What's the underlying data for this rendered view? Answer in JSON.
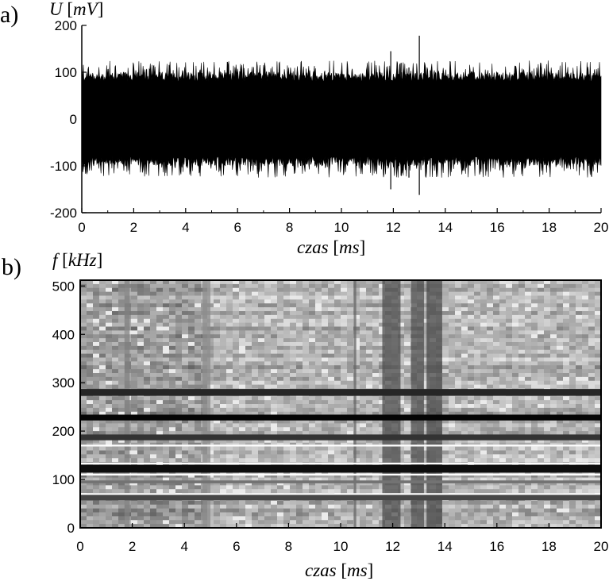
{
  "panel_a": {
    "letter": "a)"
  },
  "panel_b": {
    "letter": "b)"
  },
  "chart_data": [
    {
      "type": "line",
      "panel": "a)",
      "ylabel": {
        "var": "U",
        "unit": "mV"
      },
      "xlabel": {
        "var": "czas",
        "unit": "ms"
      },
      "xlim": [
        0,
        20
      ],
      "ylim": [
        -200,
        200
      ],
      "x_ticks": [
        0,
        2,
        4,
        6,
        8,
        10,
        12,
        14,
        16,
        18,
        20
      ],
      "y_ticks": [
        -200,
        -100,
        0,
        100,
        200
      ],
      "y_tick_labels": [
        "-200",
        "-100",
        "0",
        "100",
        "200"
      ],
      "series": [
        {
          "description_free": true,
          "fill_color": "#000000",
          "envelope": {
            "x_step": 0.02,
            "typical_peak": 80,
            "max_peak": 125
          },
          "spikes": [
            {
              "x": 11.9,
              "y_max": 145,
              "y_min": -150
            },
            {
              "x": 12.3,
              "y_max": 120,
              "y_min": -120
            },
            {
              "x": 13.0,
              "y_max": 178,
              "y_min": -162
            },
            {
              "x": 12.6,
              "y_max": 110,
              "y_min": -125
            }
          ]
        }
      ]
    },
    {
      "type": "heatmap",
      "panel": "b)",
      "ylabel": {
        "var": "f",
        "unit": "kHz"
      },
      "xlabel": {
        "var": "czas",
        "unit": "ms"
      },
      "xlim": [
        0,
        20
      ],
      "ylim": [
        0,
        512
      ],
      "x_ticks": [
        0,
        2,
        4,
        6,
        8,
        10,
        12,
        14,
        16,
        18,
        20
      ],
      "y_ticks": [
        0,
        100,
        200,
        300,
        400,
        500
      ],
      "colormap": "grayscale",
      "dark_horizontal_bands_kHz": [
        {
          "f": 280,
          "width": 14,
          "level": 0.15
        },
        {
          "f": 228,
          "width": 12,
          "level": 0.02
        },
        {
          "f": 187,
          "width": 12,
          "level": 0.2
        },
        {
          "f": 122,
          "width": 16,
          "level": 0.05
        },
        {
          "f": 63,
          "width": 12,
          "level": 0.28
        },
        {
          "f": 95,
          "width": 6,
          "level": 0.45
        }
      ],
      "dark_vertical_bands_ms": [
        {
          "x0": 11.6,
          "x1": 12.3,
          "level": 0.3
        },
        {
          "x0": 12.7,
          "x1": 13.2,
          "level": 0.3
        },
        {
          "x0": 13.3,
          "x1": 13.9,
          "level": 0.28
        },
        {
          "x0": 10.5,
          "x1": 10.6,
          "level": 0.4
        },
        {
          "x0": 1.7,
          "x1": 1.9,
          "level": 0.5
        },
        {
          "x0": 4.7,
          "x1": 5.0,
          "level": 0.55
        }
      ],
      "white_reference_lines_kHz": [
        70,
        110,
        133,
        170
      ],
      "white_line_color": "#ffffff"
    }
  ]
}
